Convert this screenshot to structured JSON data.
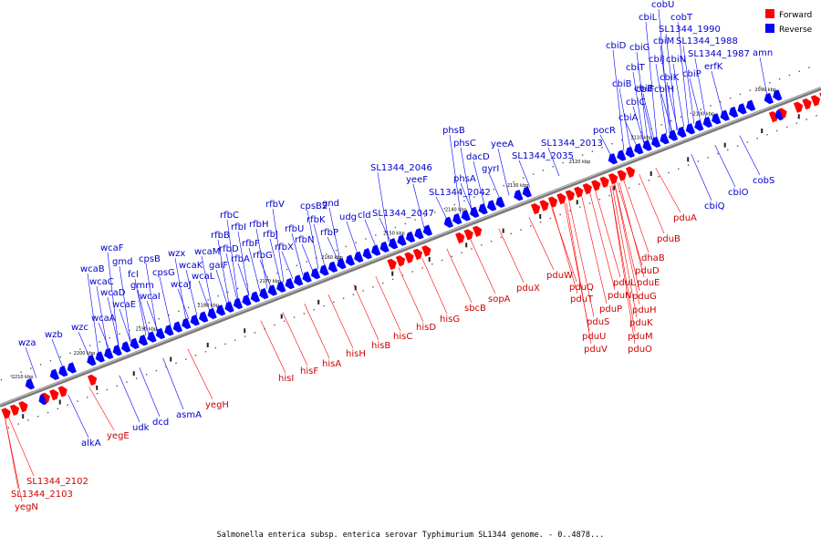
{
  "legend": [
    {
      "label": "Forward",
      "color": "#ff0000"
    },
    {
      "label": "Reverse",
      "color": "#0000ff"
    }
  ],
  "caption": "Salmonella enterica subsp. enterica serovar Typhimurium SL1344 genome. - 0..4878...",
  "ticks": [
    "2090 kbp",
    "2100 kbp",
    "2110 kbp",
    "2120 kbp",
    "2130 kbp",
    "2140 kbp",
    "2150 kbp",
    "2160 kbp",
    "2170 kbp",
    "2180 kbp",
    "2190 kbp",
    "2200 kbp",
    "2210 kbp"
  ],
  "colors": {
    "forward": "#ff0000",
    "reverse": "#0000ff",
    "forward_label": "#cc0000",
    "reverse_label": "#0000cc",
    "backbone": "#888888"
  },
  "reverse_labels": [
    "cobU",
    "cbiL",
    "cobT",
    "SL1344_1990",
    "cbiD",
    "cbiG",
    "cbiM",
    "SL1344_1988",
    "cbiJ",
    "cbiN",
    "SL1344_1987",
    "amn",
    "cbiT",
    "cbiK",
    "erfK",
    "cbiB",
    "cbiF",
    "cbiP",
    "cbiE",
    "cbiH",
    "cbiC",
    "cbiA",
    "pocR",
    "SL1344_2013",
    "phsB",
    "phsC",
    "yeeA",
    "dacD",
    "SL1344_2035",
    "gyrI",
    "phsA",
    "SL1344_2046",
    "SL1344_2042",
    "yeeF",
    "gnd",
    "SL1344_2047",
    "cpsB2",
    "rfbV",
    "cld",
    "udg",
    "rfbK",
    "rfbC",
    "rfbU",
    "rfbH",
    "rfbP",
    "rfbI",
    "rfbN",
    "rfbJ",
    "rfbB",
    "rfbD",
    "rfbF",
    "rfbX",
    "rfbA",
    "rfbG",
    "wcaM",
    "wzx",
    "galF",
    "wcaK",
    "wcaL",
    "wcaJ",
    "cpsB",
    "cpsG",
    "wcaF",
    "gmd",
    "fcl",
    "gmm",
    "wcaI",
    "wcaB",
    "wcaC",
    "wcaD",
    "wcaE",
    "wcaA",
    "wzb",
    "wzc",
    "wza"
  ],
  "reverse_lower_labels": [
    "cbiQ",
    "cbiO",
    "cobS",
    "asmA",
    "dcd",
    "udk",
    "alkA"
  ],
  "forward_labels": [
    "pduA",
    "pduB",
    "dhaB",
    "pduD",
    "pduE",
    "pduW",
    "pduQ",
    "pduL",
    "pduT",
    "pduN",
    "pduG",
    "pduP",
    "pduH",
    "pduS",
    "pduK",
    "pduU",
    "pduM",
    "pduV",
    "pduO",
    "pduX",
    "sopA",
    "sbcB",
    "hisG",
    "hisD",
    "hisC",
    "hisB",
    "hisH",
    "hisA",
    "hisF",
    "hisI",
    "yegH",
    "yegE",
    "SL1344_2102",
    "SL1344_2103",
    "yegN"
  ]
}
